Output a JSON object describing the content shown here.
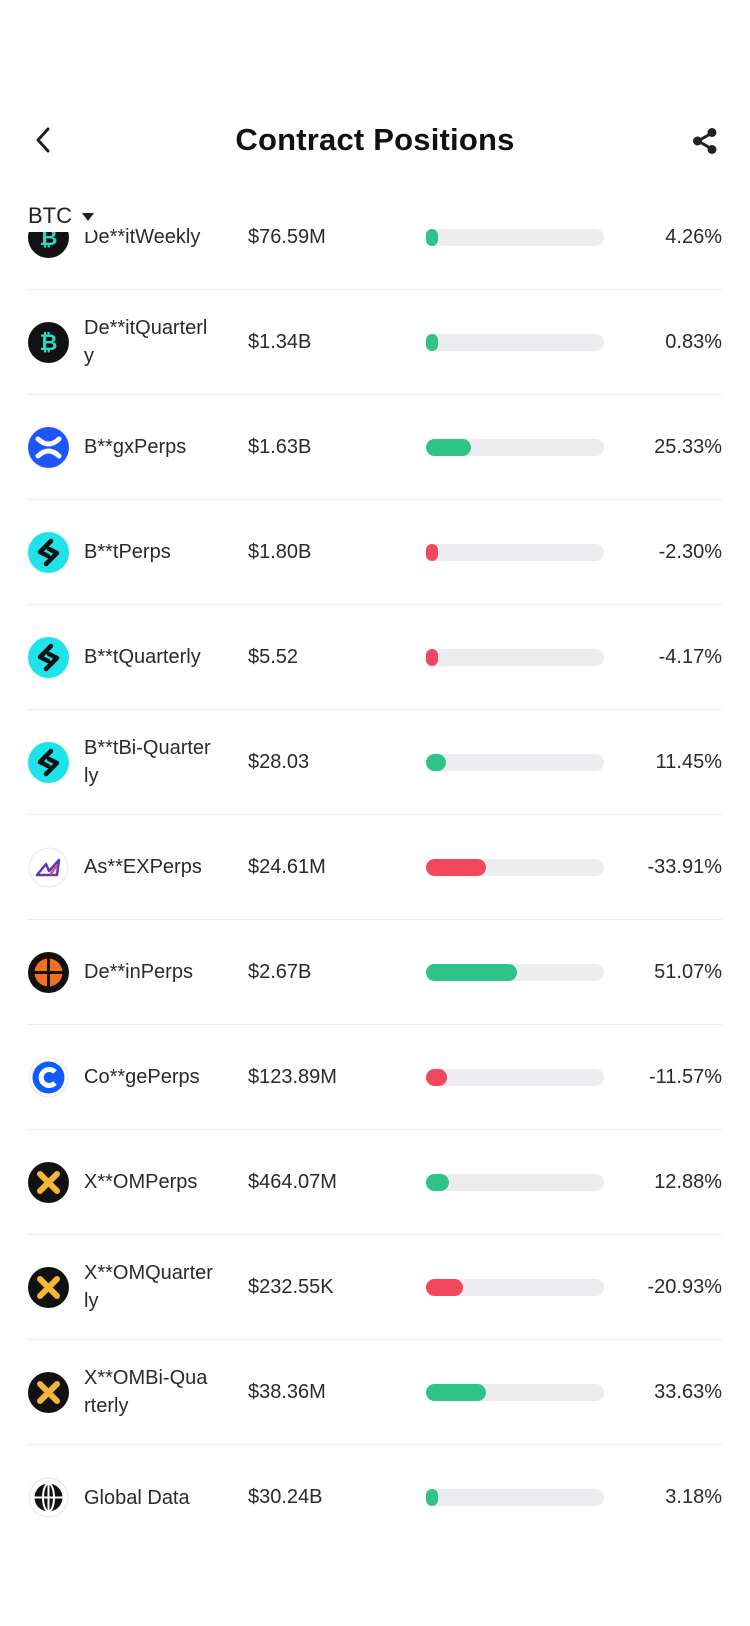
{
  "header": {
    "title": "Contract Positions"
  },
  "selector": {
    "coin": "BTC"
  },
  "colors": {
    "positive": "#2ec487",
    "negative": "#f2475d",
    "track": "#ededf0"
  },
  "rows": [
    {
      "name": "De**itWeekly",
      "amount": "$76.59M",
      "percent": "4.26%",
      "value": 4.26,
      "logo": "deribit-icon"
    },
    {
      "name": "De**itQuarterly",
      "amount": "$1.34B",
      "percent": "0.83%",
      "value": 0.83,
      "logo": "deribit-icon"
    },
    {
      "name": "B**gxPerps",
      "amount": "$1.63B",
      "percent": "25.33%",
      "value": 25.33,
      "logo": "bingx-icon"
    },
    {
      "name": "B**tPerps",
      "amount": "$1.80B",
      "percent": "-2.30%",
      "value": -2.3,
      "logo": "bybit-icon"
    },
    {
      "name": "B**tQuarterly",
      "amount": "$5.52",
      "percent": "-4.17%",
      "value": -4.17,
      "logo": "bybit-icon"
    },
    {
      "name": "B**tBi-Quarterly",
      "amount": "$28.03",
      "percent": "11.45%",
      "value": 11.45,
      "logo": "bybit-icon"
    },
    {
      "name": "As**EXPerps",
      "amount": "$24.61M",
      "percent": "-33.91%",
      "value": -33.91,
      "logo": "ascendex-icon"
    },
    {
      "name": "De**inPerps",
      "amount": "$2.67B",
      "percent": "51.07%",
      "value": 51.07,
      "logo": "deepcoin-icon"
    },
    {
      "name": "Co**gePerps",
      "amount": "$123.89M",
      "percent": "-11.57%",
      "value": -11.57,
      "logo": "coinbase-icon"
    },
    {
      "name": "X**OMPerps",
      "amount": "$464.07M",
      "percent": "12.88%",
      "value": 12.88,
      "logo": "bitmex-icon"
    },
    {
      "name": "X**OMQuarterly",
      "amount": "$232.55K",
      "percent": "-20.93%",
      "value": -20.93,
      "logo": "bitmex-icon"
    },
    {
      "name": "X**OMBi-Quarterly",
      "amount": "$38.36M",
      "percent": "33.63%",
      "value": 33.63,
      "logo": "bitmex-icon"
    },
    {
      "name": "Global Data",
      "amount": "$30.24B",
      "percent": "3.18%",
      "value": 3.18,
      "logo": "globe-icon"
    }
  ]
}
